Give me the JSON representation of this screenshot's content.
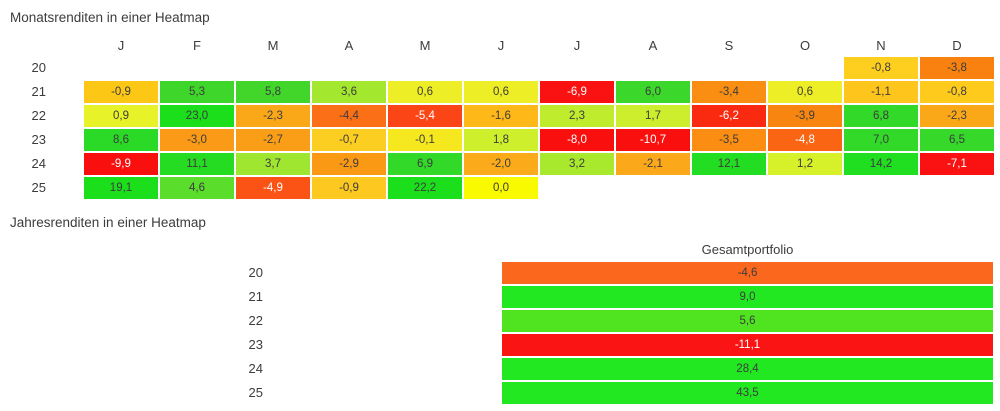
{
  "colors": {
    "dark": "#3C3C3C",
    "light": "#FFFFFF",
    "background": "#FFFFFF"
  },
  "monthly": {
    "title": "Monatsrenditen in einer Heatmap",
    "columns": [
      "J",
      "F",
      "M",
      "A",
      "M",
      "J",
      "J",
      "A",
      "S",
      "O",
      "N",
      "D"
    ],
    "rows": [
      {
        "label": "20",
        "cells": [
          null,
          null,
          null,
          null,
          null,
          null,
          null,
          null,
          null,
          null,
          {
            "v": "-0,8",
            "bg": "#FECF1E"
          },
          {
            "v": "-3,8",
            "bg": "#F98110"
          }
        ]
      },
      {
        "label": "21",
        "cells": [
          {
            "v": "-0,9",
            "bg": "#FDC716"
          },
          {
            "v": "5,3",
            "bg": "#3FD62B"
          },
          {
            "v": "5,8",
            "bg": "#42D62B"
          },
          {
            "v": "3,6",
            "bg": "#A3E72E"
          },
          {
            "v": "0,6",
            "bg": "#EDEE25"
          },
          {
            "v": "0,6",
            "bg": "#EDEE25"
          },
          {
            "v": "-6,9",
            "bg": "#FA1111",
            "fg": "light"
          },
          {
            "v": "6,0",
            "bg": "#3BD72A"
          },
          {
            "v": "-3,4",
            "bg": "#FA8E12"
          },
          {
            "v": "0,6",
            "bg": "#EDEE25"
          },
          {
            "v": "-1,1",
            "bg": "#FEC51D"
          },
          {
            "v": "-0,8",
            "bg": "#FECB1C"
          }
        ]
      },
      {
        "label": "22",
        "cells": [
          {
            "v": "0,9",
            "bg": "#E8F228"
          },
          {
            "v": "23,0",
            "bg": "#1ADF1A"
          },
          {
            "v": "-2,3",
            "bg": "#FBA818"
          },
          {
            "v": "-4,4",
            "bg": "#FB6F17"
          },
          {
            "v": "-5,4",
            "bg": "#FB4517",
            "fg": "light"
          },
          {
            "v": "-1,6",
            "bg": "#FEB818"
          },
          {
            "v": "2,3",
            "bg": "#BFEC2D"
          },
          {
            "v": "1,7",
            "bg": "#CDEE2C"
          },
          {
            "v": "-6,2",
            "bg": "#FA2A10",
            "fg": "light"
          },
          {
            "v": "-3,9",
            "bg": "#F98511"
          },
          {
            "v": "6,8",
            "bg": "#33D929"
          },
          {
            "v": "-2,3",
            "bg": "#FBA818"
          }
        ]
      },
      {
        "label": "23",
        "cells": [
          {
            "v": "8,6",
            "bg": "#2BDA26"
          },
          {
            "v": "-3,0",
            "bg": "#FA9A16"
          },
          {
            "v": "-2,7",
            "bg": "#FA9E17"
          },
          {
            "v": "-0,7",
            "bg": "#FDCE22"
          },
          {
            "v": "-0,1",
            "bg": "#F5E81F"
          },
          {
            "v": "1,8",
            "bg": "#CDEF2C"
          },
          {
            "v": "-8,0",
            "bg": "#FA0F0F",
            "fg": "light"
          },
          {
            "v": "-10,7",
            "bg": "#FA0F0F",
            "fg": "light"
          },
          {
            "v": "-3,5",
            "bg": "#FA8D12"
          },
          {
            "v": "-4,8",
            "bg": "#F96512",
            "fg": "light"
          },
          {
            "v": "7,0",
            "bg": "#33D929"
          },
          {
            "v": "6,5",
            "bg": "#36D82A"
          }
        ]
      },
      {
        "label": "24",
        "cells": [
          {
            "v": "-9,9",
            "bg": "#FA0F0F",
            "fg": "light"
          },
          {
            "v": "11,1",
            "bg": "#26DC23"
          },
          {
            "v": "3,7",
            "bg": "#9FE631"
          },
          {
            "v": "-2,9",
            "bg": "#FA9913"
          },
          {
            "v": "6,9",
            "bg": "#33D929"
          },
          {
            "v": "-2,0",
            "bg": "#FBAB19"
          },
          {
            "v": "3,2",
            "bg": "#A8E92E"
          },
          {
            "v": "-2,1",
            "bg": "#FBA91A"
          },
          {
            "v": "12,1",
            "bg": "#23DD22"
          },
          {
            "v": "1,2",
            "bg": "#D6F02A"
          },
          {
            "v": "14,2",
            "bg": "#20DE20"
          },
          {
            "v": "-7,1",
            "bg": "#FA1111",
            "fg": "light"
          }
        ]
      },
      {
        "label": "25",
        "cells": [
          {
            "v": "19,1",
            "bg": "#1CDF1C"
          },
          {
            "v": "4,6",
            "bg": "#5ADD2B"
          },
          {
            "v": "-4,9",
            "bg": "#FA5315",
            "fg": "light"
          },
          {
            "v": "-0,9",
            "bg": "#FDC81F"
          },
          {
            "v": "22,2",
            "bg": "#1BDF1B"
          },
          {
            "v": "0,0",
            "bg": "#F9F900"
          },
          null,
          null,
          null,
          null,
          null,
          null
        ]
      }
    ]
  },
  "yearly": {
    "title": "Jahresrenditen in einer Heatmap",
    "column_header": "Gesamtportfolio",
    "rows": [
      {
        "label": "20",
        "v": "-4,6",
        "bg": "#FB671C"
      },
      {
        "label": "21",
        "v": "9,0",
        "bg": "#22E822"
      },
      {
        "label": "22",
        "v": "5,6",
        "bg": "#4FE41F"
      },
      {
        "label": "23",
        "v": "-11,1",
        "bg": "#FA1414",
        "fg": "light"
      },
      {
        "label": "24",
        "v": "28,4",
        "bg": "#22E822"
      },
      {
        "label": "25",
        "v": "43,5",
        "bg": "#22E822"
      }
    ]
  },
  "chart_data": [
    {
      "type": "heatmap",
      "title": "Monatsrenditen in einer Heatmap",
      "x_labels": [
        "J",
        "F",
        "M",
        "A",
        "M",
        "J",
        "J",
        "A",
        "S",
        "O",
        "N",
        "D"
      ],
      "y_labels": [
        "20",
        "21",
        "22",
        "23",
        "24",
        "25"
      ],
      "values": [
        [
          null,
          null,
          null,
          null,
          null,
          null,
          null,
          null,
          null,
          null,
          -0.8,
          -3.8
        ],
        [
          -0.9,
          5.3,
          5.8,
          3.6,
          0.6,
          0.6,
          -6.9,
          6.0,
          -3.4,
          0.6,
          -1.1,
          -0.8
        ],
        [
          0.9,
          23.0,
          -2.3,
          -4.4,
          -5.4,
          -1.6,
          2.3,
          1.7,
          -6.2,
          -3.9,
          6.8,
          -2.3
        ],
        [
          8.6,
          -3.0,
          -2.7,
          -0.7,
          -0.1,
          1.8,
          -8.0,
          -10.7,
          -3.5,
          -4.8,
          7.0,
          6.5
        ],
        [
          -9.9,
          11.1,
          3.7,
          -2.9,
          6.9,
          -2.0,
          3.2,
          -2.1,
          12.1,
          1.2,
          14.2,
          -7.1
        ],
        [
          19.1,
          4.6,
          -4.9,
          -0.9,
          22.2,
          0.0,
          null,
          null,
          null,
          null,
          null,
          null
        ]
      ],
      "colormap": "red-yellow-green",
      "legend": "off",
      "grid": "off"
    },
    {
      "type": "heatmap",
      "title": "Jahresrenditen in einer Heatmap",
      "x_labels": [
        "Gesamtportfolio"
      ],
      "y_labels": [
        "20",
        "21",
        "22",
        "23",
        "24",
        "25"
      ],
      "values": [
        [
          -4.6
        ],
        [
          9.0
        ],
        [
          5.6
        ],
        [
          -11.1
        ],
        [
          28.4
        ],
        [
          43.5
        ]
      ],
      "colormap": "red-yellow-green",
      "legend": "off",
      "grid": "off"
    }
  ]
}
